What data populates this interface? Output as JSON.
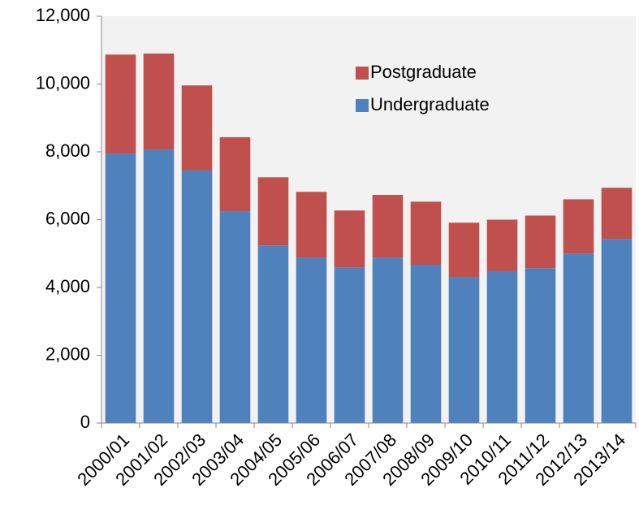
{
  "chart_data": {
    "type": "stacked_bar",
    "categories": [
      "2000/01",
      "2001/02",
      "2002/03",
      "2003/04",
      "2004/05",
      "2005/06",
      "2006/07",
      "2007/08",
      "2008/09",
      "2009/10",
      "2010/11",
      "2011/12",
      "2012/13",
      "2013/14"
    ],
    "series": [
      {
        "name": "Undergraduate",
        "color": "#4f81bd",
        "values": [
          7950,
          8070,
          7450,
          6250,
          5240,
          4880,
          4590,
          4880,
          4670,
          4310,
          4480,
          4570,
          5000,
          5430
        ]
      },
      {
        "name": "Postgraduate",
        "color": "#c0504d",
        "values": [
          2920,
          2830,
          2510,
          2180,
          2010,
          1940,
          1680,
          1850,
          1860,
          1600,
          1520,
          1550,
          1600,
          1510
        ]
      }
    ],
    "ylim": [
      0,
      12000
    ],
    "yticks": [
      0,
      {
        "value": 2000,
        "label": "2,000"
      },
      {
        "value": 4000,
        "label": "4,000"
      },
      {
        "value": 6000,
        "label": "6,000"
      },
      {
        "value": 8000,
        "label": "8,000"
      },
      {
        "value": 10000,
        "label": "10,000"
      },
      {
        "value": 12000,
        "label": "12,000"
      }
    ],
    "legend": "upper-center"
  }
}
